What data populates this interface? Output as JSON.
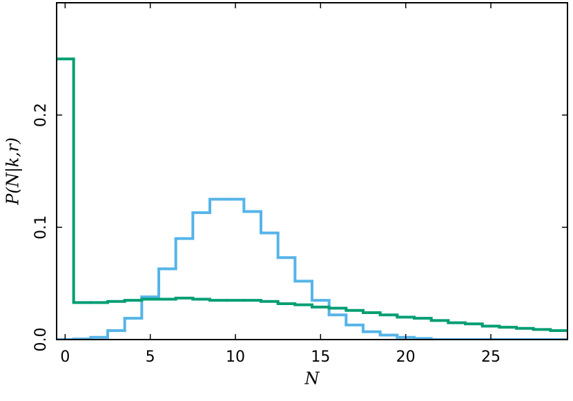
{
  "chart_data": {
    "type": "step",
    "xlabel": "N",
    "ylabel": "P(N|k,r)",
    "x": [
      0,
      1,
      2,
      3,
      4,
      5,
      6,
      7,
      8,
      9,
      10,
      11,
      12,
      13,
      14,
      15,
      16,
      17,
      18,
      19,
      20,
      21,
      22,
      23,
      24,
      25,
      26,
      27,
      28,
      29
    ],
    "series": [
      {
        "color": "#56b4e9",
        "values": [
          0,
          0.0005,
          0.002,
          0.008,
          0.019,
          0.038,
          0.063,
          0.09,
          0.113,
          0.125,
          0.125,
          0.114,
          0.095,
          0.073,
          0.052,
          0.035,
          0.022,
          0.013,
          0.007,
          0.004,
          0.002,
          0.001,
          0,
          0,
          0,
          0,
          0,
          0,
          0,
          0
        ]
      },
      {
        "color": "#009e73",
        "values": [
          0.25,
          0.033,
          0.033,
          0.034,
          0.035,
          0.036,
          0.036,
          0.037,
          0.036,
          0.035,
          0.035,
          0.035,
          0.034,
          0.032,
          0.031,
          0.029,
          0.028,
          0.026,
          0.024,
          0.022,
          0.02,
          0.019,
          0.017,
          0.015,
          0.014,
          0.012,
          0.011,
          0.01,
          0.009,
          0.008
        ]
      }
    ],
    "xlim": [
      -0.5,
      29.5
    ],
    "ylim": [
      0,
      0.3
    ],
    "xticks": [
      0,
      5,
      10,
      15,
      20,
      25
    ],
    "yticks": [
      {
        "value": 0,
        "label": "0.0"
      },
      0.1,
      0.2
    ]
  }
}
